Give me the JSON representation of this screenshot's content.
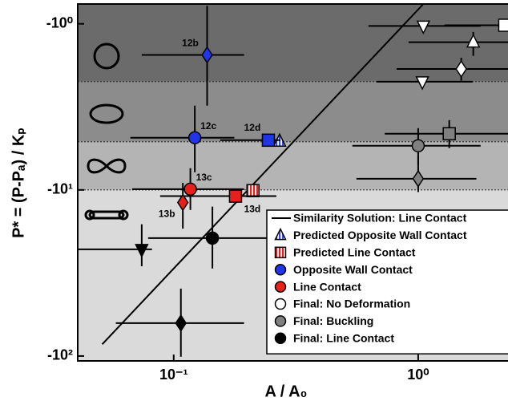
{
  "chart_data": {
    "type": "scatter",
    "x_label": "A / A₀",
    "y_label": "P* = (P-Pₐ) / Kₚ",
    "xscale": "log",
    "yscale": "log",
    "xlim": [
      0.0405,
      2.33
    ],
    "ylim": [
      -107,
      -0.76
    ],
    "xticks": [
      {
        "value": 0.1,
        "label": "10⁻¹"
      },
      {
        "value": 1,
        "label": "10⁰"
      }
    ],
    "yticks": [
      {
        "value": -1,
        "label": "-10⁰"
      },
      {
        "value": -10,
        "label": "-10¹"
      },
      {
        "value": -100,
        "label": "-10²"
      }
    ],
    "region_bounds": [
      -2.23,
      -5.13,
      -10
    ],
    "region_colors": [
      "#6b6b6b",
      "#8c8c8c",
      "#b4b4b4",
      "#dadada"
    ],
    "legend": "lower right",
    "series": [
      {
        "name": "Similarity Solution: Line Contact",
        "kind": "line",
        "color": "#000000",
        "x": [
          0.051,
          1.05
        ],
        "values": [
          -85,
          -0.76
        ]
      },
      {
        "name": "Predicted Opposite Wall Contact",
        "kind": "scatter",
        "color": "#3b4ee0",
        "striped": true,
        "legend_marker": "triangle-up",
        "x": [
          0.271
        ],
        "values": [
          -5.1
        ],
        "markers": [
          "triangle-up"
        ],
        "x_err": [
          null
        ],
        "y_err": [
          null
        ],
        "point_labels": [
          null
        ]
      },
      {
        "name": "Predicted Line Contact",
        "kind": "scatter",
        "color": "#e8201c",
        "striped": true,
        "legend_marker": "square",
        "x": [
          0.211
        ],
        "values": [
          -10.1
        ],
        "markers": [
          "square"
        ],
        "x_err": [
          null
        ],
        "y_err": [
          null
        ],
        "point_labels": [
          null
        ]
      },
      {
        "name": "Opposite Wall Contact",
        "kind": "scatter",
        "color": "#1f35e6",
        "legend_marker": "circle",
        "x": [
          0.137,
          0.122,
          0.244
        ],
        "values": [
          -1.54,
          -4.85,
          -5.02
        ],
        "markers": [
          "diamond",
          "circle",
          "square"
        ],
        "x_err": [
          [
            0.074,
            0.194
          ],
          [
            0.0665,
            0.177
          ],
          [
            0.155,
            0.273
          ]
        ],
        "y_err": [
          [
            -0.78,
            -3.11
          ],
          [
            -3.11,
            -7.83
          ],
          null
        ],
        "point_labels": [
          "12b",
          "12c",
          "12d"
        ]
      },
      {
        "name": "Line Contact",
        "kind": "scatter",
        "color": "#e8201c",
        "legend_marker": "circle",
        "x": [
          0.117,
          0.109,
          0.179
        ],
        "values": [
          -9.9,
          -11.9,
          -10.9
        ],
        "markers": [
          "circle",
          "diamond",
          "square"
        ],
        "x_err": [
          [
            0.0676,
            0.194
          ],
          null,
          [
            0.088,
            0.263
          ]
        ],
        "y_err": [
          [
            -7.4,
            -13.2
          ],
          [
            -9.06,
            -17.1
          ],
          null
        ],
        "point_labels": [
          "13c",
          "13b",
          "13d"
        ]
      },
      {
        "name": "Final: No Deformation",
        "kind": "scatter",
        "color": "#ffffff",
        "legend_marker": "circle",
        "x": [
          1.05,
          1.68,
          1.5,
          1.04,
          2.26
        ],
        "values": [
          -1.03,
          -1.29,
          -1.87,
          -2.23,
          -1.02
        ],
        "markers": [
          "triangle-down",
          "triangle-up",
          "diamond",
          "triangle-down",
          "square"
        ],
        "x_err": [
          [
            0.626,
            1.8
          ],
          [
            0.913,
            2.4
          ],
          [
            0.816,
            2.4
          ],
          [
            0.675,
            1.67
          ],
          [
            1.28,
            2.4
          ]
        ],
        "y_err": [
          null,
          [
            -1.12,
            -1.56
          ],
          [
            -1.6,
            -2.2
          ],
          null,
          null
        ],
        "point_labels": [
          null,
          null,
          null,
          null,
          null
        ]
      },
      {
        "name": "Final: Buckling",
        "kind": "scatter",
        "color": "#808080",
        "legend_marker": "circle",
        "x": [
          1.34,
          1.0,
          1.0
        ],
        "values": [
          -4.59,
          -5.42,
          -8.56
        ],
        "markers": [
          "square",
          "circle",
          "diamond"
        ],
        "x_err": [
          [
            0.73,
            2.4
          ],
          [
            0.538,
            1.8
          ],
          [
            0.559,
            1.73
          ]
        ],
        "y_err": [
          [
            -3.8,
            -5.6
          ],
          [
            -4.25,
            -7.0
          ],
          [
            -6.27,
            -10.3
          ]
        ],
        "point_labels": [
          null,
          null,
          null
        ]
      },
      {
        "name": "Final: Line Contact",
        "kind": "scatter",
        "color": "#000000",
        "legend_marker": "circle",
        "x": [
          0.074,
          0.144,
          0.107
        ],
        "values": [
          -22.8,
          -19.5,
          -63.4
        ],
        "markers": [
          "triangle-down",
          "circle",
          "diamond"
        ],
        "x_err": [
          [
            0.0218,
            0.0815
          ],
          [
            0.0786,
            0.263
          ],
          [
            0.058,
            0.194
          ]
        ],
        "y_err": [
          [
            -16.1,
            -28.8
          ],
          [
            -12.6,
            -29.7
          ],
          [
            -39.3,
            -101
          ]
        ],
        "point_labels": [
          null,
          null,
          null
        ]
      }
    ]
  }
}
